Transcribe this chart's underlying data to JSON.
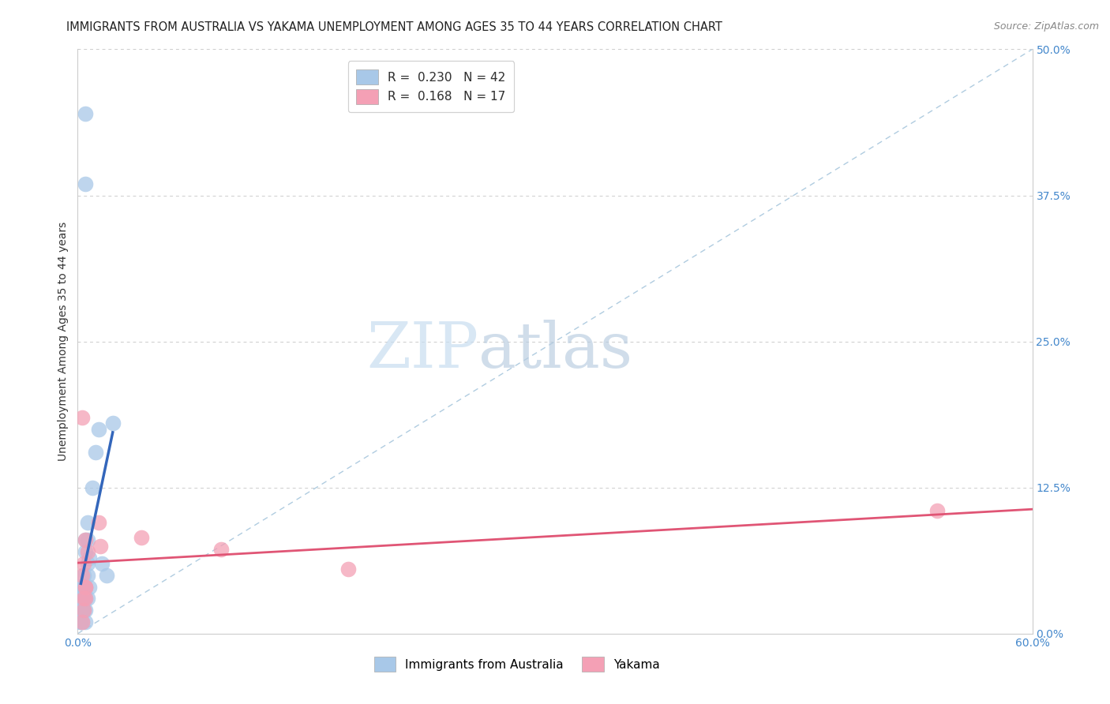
{
  "title": "IMMIGRANTS FROM AUSTRALIA VS YAKAMA UNEMPLOYMENT AMONG AGES 35 TO 44 YEARS CORRELATION CHART",
  "source": "Source: ZipAtlas.com",
  "ylabel": "Unemployment Among Ages 35 to 44 years",
  "xlim": [
    0.0,
    0.6
  ],
  "ylim": [
    0.0,
    0.5
  ],
  "australia_R": 0.23,
  "australia_N": 42,
  "yakama_R": 0.168,
  "yakama_N": 17,
  "australia_color": "#a8c8e8",
  "australia_edge_color": "#a8c8e8",
  "australia_line_color": "#3366bb",
  "yakama_color": "#f4a0b5",
  "yakama_edge_color": "#f4a0b5",
  "yakama_line_color": "#e05575",
  "diagonal_color": "#b0cce0",
  "grid_color": "#cccccc",
  "background_color": "#ffffff",
  "australia_scatter_x": [
    0.005,
    0.005,
    0.004,
    0.006,
    0.007,
    0.002,
    0.003,
    0.004,
    0.005,
    0.006,
    0.004,
    0.003,
    0.005,
    0.002,
    0.003,
    0.004,
    0.006,
    0.007,
    0.005,
    0.004,
    0.003,
    0.005,
    0.006,
    0.004,
    0.003,
    0.005,
    0.006,
    0.009,
    0.011,
    0.013,
    0.015,
    0.018,
    0.002,
    0.003,
    0.004,
    0.005,
    0.002,
    0.003,
    0.022,
    0.003,
    0.002,
    0.004
  ],
  "australia_scatter_y": [
    0.445,
    0.385,
    0.03,
    0.06,
    0.04,
    0.02,
    0.03,
    0.05,
    0.07,
    0.08,
    0.04,
    0.02,
    0.03,
    0.01,
    0.02,
    0.03,
    0.05,
    0.065,
    0.04,
    0.02,
    0.01,
    0.02,
    0.03,
    0.04,
    0.03,
    0.08,
    0.095,
    0.125,
    0.155,
    0.175,
    0.06,
    0.05,
    0.03,
    0.04,
    0.02,
    0.01,
    0.02,
    0.03,
    0.18,
    0.02,
    0.01,
    0.03
  ],
  "yakama_scatter_x": [
    0.005,
    0.003,
    0.004,
    0.005,
    0.006,
    0.003,
    0.004,
    0.005,
    0.013,
    0.014,
    0.04,
    0.09,
    0.17,
    0.004,
    0.005,
    0.003,
    0.54
  ],
  "yakama_scatter_y": [
    0.04,
    0.185,
    0.06,
    0.08,
    0.07,
    0.05,
    0.03,
    0.04,
    0.095,
    0.075,
    0.082,
    0.072,
    0.055,
    0.02,
    0.03,
    0.01,
    0.105
  ],
  "legend_label_australia": "Immigrants from Australia",
  "legend_label_yakama": "Yakama",
  "title_fontsize": 10.5,
  "source_fontsize": 9,
  "ylabel_fontsize": 10,
  "tick_fontsize": 10,
  "legend_fontsize": 11,
  "watermark_zip_fontsize": 58,
  "watermark_atlas_fontsize": 58
}
